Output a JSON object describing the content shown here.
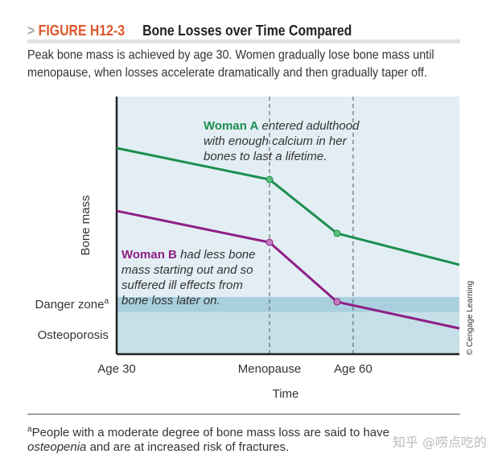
{
  "header": {
    "arrow": ">",
    "figure_label": "FIGURE H12-3",
    "title": "Bone Losses over Time Compared"
  },
  "caption": "Peak bone mass is achieved by age 30. Women gradually lose bone mass until menopause, when losses accelerate dramatically and then gradually taper off.",
  "chart_data": {
    "type": "line",
    "title": "Bone Losses over Time Compared",
    "xlabel": "Time",
    "ylabel": "Bone mass",
    "xlim": [
      0,
      100
    ],
    "ylim": [
      0,
      100
    ],
    "x_ticks": [
      {
        "label": "Age 30",
        "x": 0
      },
      {
        "label": "Menopause",
        "x": 44.6
      },
      {
        "label": "Age 60",
        "x": 69
      }
    ],
    "zones": [
      {
        "label": "Danger zone",
        "sup": "a",
        "range": [
          16.3,
          22.2
        ],
        "color": "#a9cfde"
      },
      {
        "label": "Osteoporosis",
        "range": [
          0,
          16.3
        ],
        "color": "#c6dfe8"
      }
    ],
    "series": [
      {
        "name": "Woman A",
        "color": "#1b8f4f",
        "marker_color": "#5cbf7a",
        "x": [
          0,
          44.6,
          64.3,
          100
        ],
        "y": [
          80,
          67.8,
          46.9,
          34.7
        ],
        "markers": [
          1,
          2
        ],
        "annotation_bold": "Woman A",
        "annotation_lines": [
          " entered adulthood",
          "with enough calcium in her",
          "bones to last a lifetime."
        ]
      },
      {
        "name": "Woman B",
        "color": "#8e1f86",
        "marker_color": "#c57cbf",
        "x": [
          0,
          44.6,
          64.3,
          100
        ],
        "y": [
          55.6,
          43.4,
          20.3,
          10
        ],
        "markers": [
          1,
          2
        ],
        "annotation_bold": "Woman B",
        "annotation_lines": [
          " had less bone",
          "mass starting out and so",
          "suffered ill effects from",
          "bone loss later on."
        ]
      }
    ],
    "credit": "© Cengage Learning",
    "plot_background": "#e3eef4"
  },
  "footnote": {
    "sup": "a",
    "text": "People with a moderate degree of bone mass loss are said to have ",
    "italic": "osteopenia",
    "rest": " and are at increased risk of fractures."
  },
  "watermark": "知乎 @唠点吃的"
}
